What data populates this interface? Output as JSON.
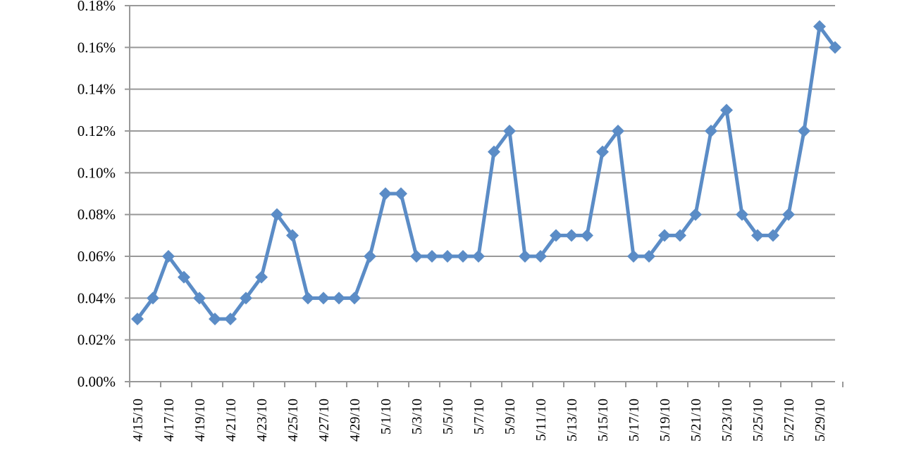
{
  "chart_data": {
    "type": "line",
    "title": "",
    "xlabel": "",
    "ylabel": "",
    "x": [
      "4/15/10",
      "4/16/10",
      "4/17/10",
      "4/18/10",
      "4/19/10",
      "4/20/10",
      "4/21/10",
      "4/22/10",
      "4/23/10",
      "4/24/10",
      "4/25/10",
      "4/26/10",
      "4/27/10",
      "4/28/10",
      "4/29/10",
      "4/30/10",
      "5/1/10",
      "5/2/10",
      "5/3/10",
      "5/4/10",
      "5/5/10",
      "5/6/10",
      "5/7/10",
      "5/8/10",
      "5/9/10",
      "5/10/10",
      "5/11/10",
      "5/12/10",
      "5/13/10",
      "5/14/10",
      "5/15/10",
      "5/16/10",
      "5/17/10",
      "5/18/10",
      "5/19/10",
      "5/20/10",
      "5/21/10",
      "5/22/10",
      "5/23/10",
      "5/24/10",
      "5/25/10",
      "5/26/10",
      "5/27/10",
      "5/28/10",
      "5/29/10",
      "5/30/10"
    ],
    "series": [
      {
        "values": [
          0.03,
          0.04,
          0.06,
          0.05,
          0.04,
          0.03,
          0.03,
          0.04,
          0.05,
          0.08,
          0.07,
          0.04,
          0.04,
          0.04,
          0.04,
          0.06,
          0.09,
          0.09,
          0.06,
          0.06,
          0.06,
          0.06,
          0.06,
          0.11,
          0.12,
          0.06,
          0.06,
          0.07,
          0.07,
          0.07,
          0.11,
          0.12,
          0.06,
          0.06,
          0.07,
          0.07,
          0.08,
          0.12,
          0.13,
          0.08,
          0.07,
          0.07,
          0.08,
          0.12,
          0.17,
          0.16
        ]
      }
    ],
    "ylim": [
      0,
      0.18
    ],
    "y_tick_labels": [
      "0.00%",
      "0.02%",
      "0.04%",
      "0.06%",
      "0.08%",
      "0.10%",
      "0.12%",
      "0.14%",
      "0.16%",
      "0.18%"
    ],
    "x_tick_labels": [
      "4/15/10",
      "4/17/10",
      "4/19/10",
      "4/21/10",
      "4/23/10",
      "4/25/10",
      "4/27/10",
      "4/29/10",
      "5/1/10",
      "5/3/10",
      "5/5/10",
      "5/7/10",
      "5/9/10",
      "5/11/10",
      "5/13/10",
      "5/15/10",
      "5/17/10",
      "5/19/10",
      "5/21/10",
      "5/23/10",
      "5/25/10",
      "5/27/10",
      "5/29/10"
    ],
    "grid": true,
    "legend": "none",
    "marker": "diamond",
    "line_color": "#5B8CC6",
    "grid_color": "#999999"
  }
}
